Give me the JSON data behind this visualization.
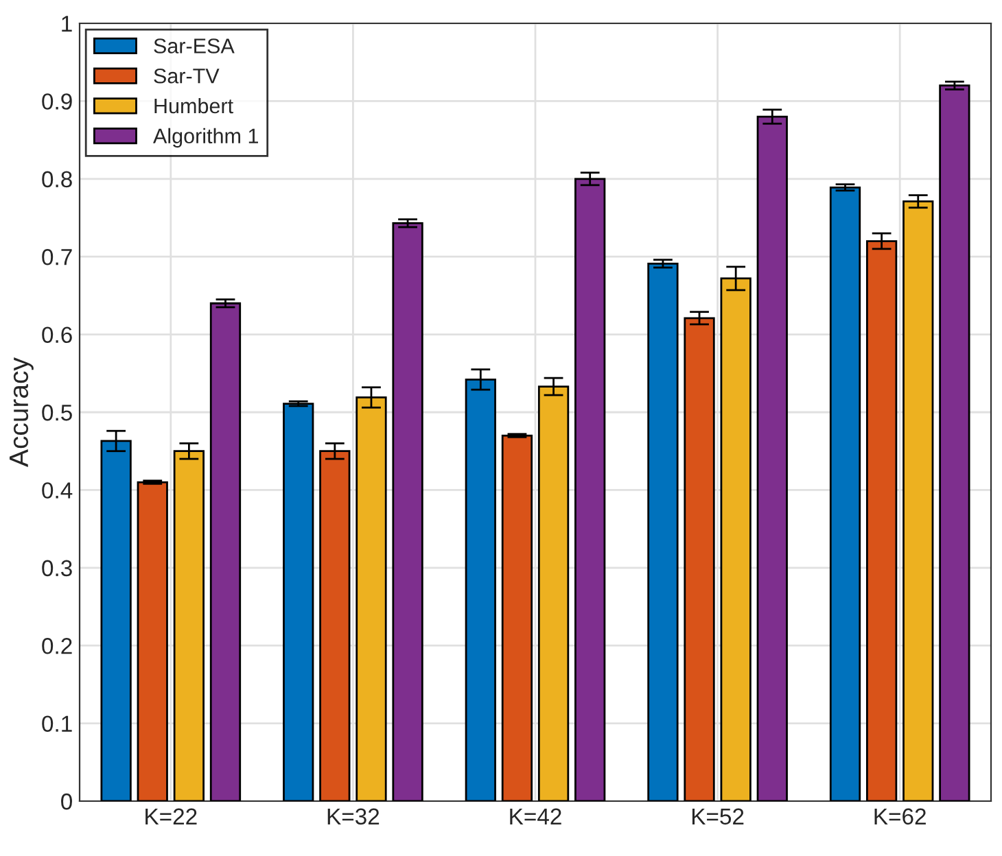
{
  "chart_data": {
    "type": "bar",
    "ylabel": "Accuracy",
    "categories": [
      "K=22",
      "K=32",
      "K=42",
      "K=52",
      "K=62"
    ],
    "series": [
      {
        "name": "Sar-ESA",
        "color": "#0072bd",
        "values": [
          0.463,
          0.511,
          0.542,
          0.691,
          0.789
        ],
        "errors": [
          0.013,
          0.003,
          0.013,
          0.005,
          0.004
        ]
      },
      {
        "name": "Sar-TV",
        "color": "#d95319",
        "values": [
          0.41,
          0.45,
          0.47,
          0.621,
          0.72
        ],
        "errors": [
          0.002,
          0.01,
          0.002,
          0.008,
          0.01
        ]
      },
      {
        "name": "Humbert",
        "color": "#edb120",
        "values": [
          0.45,
          0.519,
          0.533,
          0.672,
          0.771
        ],
        "errors": [
          0.01,
          0.013,
          0.011,
          0.015,
          0.008
        ]
      },
      {
        "name": "Algorithm 1",
        "color": "#7e2f8e",
        "values": [
          0.64,
          0.743,
          0.8,
          0.88,
          0.92
        ],
        "errors": [
          0.005,
          0.005,
          0.008,
          0.009,
          0.005
        ]
      }
    ],
    "ylim": [
      0,
      1
    ],
    "yticks": [
      0,
      0.1,
      0.2,
      0.3,
      0.4,
      0.5,
      0.6,
      0.7,
      0.8,
      0.9,
      1
    ],
    "grid": true,
    "legend": "top left"
  }
}
